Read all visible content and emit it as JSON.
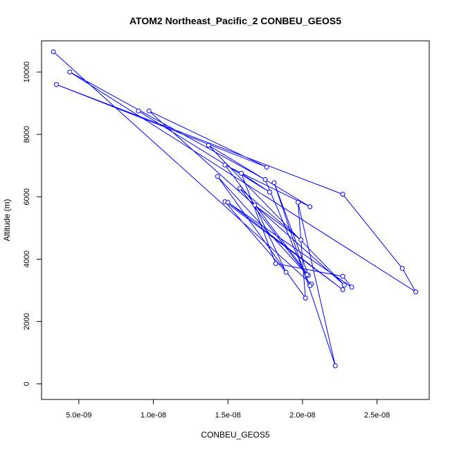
{
  "chart_data": {
    "type": "line",
    "title": "ATOM2 Northeast_Pacific_2 CONBEU_GEOS5",
    "xlabel": "CONBEU_GEOS5",
    "ylabel": "Altitude (m)",
    "xlim": [
      2.5e-09,
      2.85e-08
    ],
    "ylim": [
      -500,
      11000
    ],
    "x_ticks": [
      {
        "value": 5e-09,
        "label": "5.0e-09"
      },
      {
        "value": 1e-08,
        "label": "1.0e-08"
      },
      {
        "value": 1.5e-08,
        "label": "1.5e-08"
      },
      {
        "value": 2e-08,
        "label": "2.0e-08"
      },
      {
        "value": 2.5e-08,
        "label": "2.5e-08"
      }
    ],
    "y_ticks": [
      {
        "value": 0,
        "label": "0"
      },
      {
        "value": 2000,
        "label": "2000"
      },
      {
        "value": 4000,
        "label": "4000"
      },
      {
        "value": 6000,
        "label": "6000"
      },
      {
        "value": 8000,
        "label": "8000"
      },
      {
        "value": 10000,
        "label": "10000"
      }
    ],
    "color": "#0000ff",
    "series": [
      {
        "points": [
          [
            3.3e-09,
            10650
          ],
          [
            2.06e-08,
            3200
          ],
          [
            2.05e-08,
            3150
          ],
          [
            1.75e-08,
            6550
          ],
          [
            4.4e-09,
            10000
          ],
          [
            2.76e-08,
            2950
          ],
          [
            2.67e-08,
            3700
          ],
          [
            2.27e-08,
            6080
          ],
          [
            3.5e-09,
            9600
          ],
          [
            1.76e-08,
            6950
          ],
          [
            9.7e-09,
            8750
          ],
          [
            2.28e-08,
            3170
          ],
          [
            1.37e-08,
            7650
          ],
          [
            2.05e-08,
            5680
          ],
          [
            1.48e-08,
            7020
          ],
          [
            2.04e-08,
            3480
          ],
          [
            1.81e-08,
            6450
          ],
          [
            2.22e-08,
            580
          ],
          [
            1.97e-08,
            5820
          ],
          [
            2.02e-08,
            2750
          ],
          [
            1.43e-08,
            6650
          ],
          [
            2.03e-08,
            3500
          ],
          [
            1.58e-08,
            6270
          ],
          [
            1.99e-08,
            4620
          ],
          [
            1.68e-08,
            5730
          ],
          [
            1.89e-08,
            3580
          ],
          [
            1.48e-08,
            5840
          ],
          [
            2.27e-08,
            3020
          ],
          [
            1.5e-08,
            5820
          ],
          [
            2.33e-08,
            3100
          ],
          [
            2.27e-08,
            3450
          ],
          [
            1.82e-08,
            3860
          ],
          [
            1.59e-08,
            6750
          ],
          [
            1.78e-08,
            6150
          ],
          [
            9e-09,
            8750
          ]
        ]
      }
    ]
  }
}
